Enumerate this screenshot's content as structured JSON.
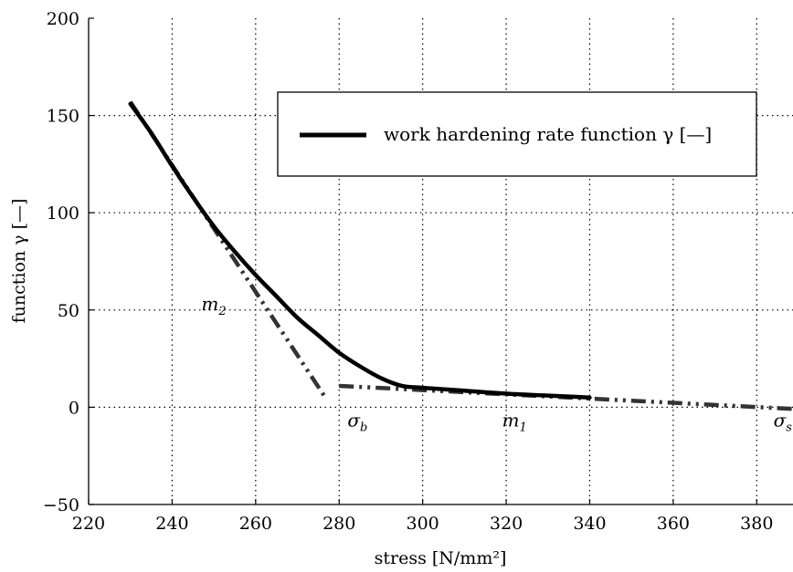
{
  "chart_data": {
    "type": "line",
    "xlabel": "stress [N/mm²]",
    "ylabel": "function γ [—]",
    "xlim": [
      220,
      390
    ],
    "ylim": [
      -50,
      200
    ],
    "xticks": [
      220,
      240,
      260,
      280,
      300,
      320,
      340,
      360,
      380
    ],
    "yticks": [
      -50,
      0,
      50,
      100,
      150,
      200
    ],
    "xtick_labels": [
      "220",
      "240",
      "260",
      "280",
      "300",
      "320",
      "340",
      "360",
      "380"
    ],
    "ytick_labels": [
      "−50",
      "0",
      "50",
      "100",
      "150",
      "200"
    ],
    "grid": true,
    "legend_position": "top-right",
    "series": [
      {
        "name": "work hardening rate function γ [—]",
        "style": "solid",
        "color": "#000000",
        "x": [
          230,
          235,
          240,
          245,
          250,
          255,
          260,
          265,
          270,
          275,
          280,
          285,
          290,
          295,
          300,
          310,
          320,
          330,
          340
        ],
        "y": [
          156,
          141,
          124,
          108,
          93,
          80,
          68,
          57,
          46,
          37,
          28,
          21,
          15,
          11,
          10,
          8.5,
          7,
          6,
          5
        ]
      },
      {
        "style": "dash-dot-dot",
        "color": "#333333",
        "segments": [
          {
            "x": [
              230,
              277
            ],
            "y": [
              157,
              4
            ]
          },
          {
            "x": [
              280,
              390
            ],
            "y": [
              11,
              -1
            ]
          }
        ]
      }
    ],
    "annotations": [
      {
        "base": "m",
        "sub": "2",
        "x": 247,
        "y": 50
      },
      {
        "base": "σ",
        "sub": "b",
        "x": 282,
        "y": -10
      },
      {
        "base": "m",
        "sub": "1",
        "x": 319,
        "y": -10
      },
      {
        "base": "σ",
        "sub": "s",
        "x": 384,
        "y": -10
      }
    ]
  }
}
